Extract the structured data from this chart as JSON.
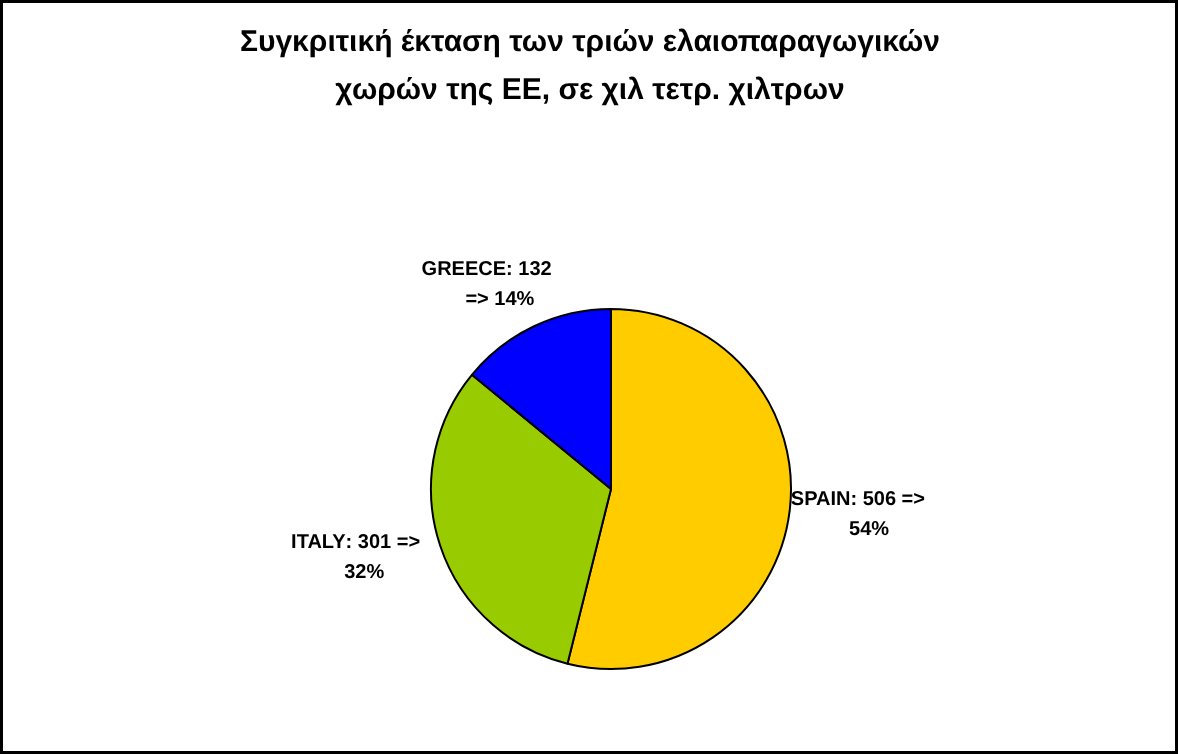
{
  "chart_data": {
    "type": "pie",
    "title": "Συγκριτική έκταση των τριών ελαιοπαραγωγικών\nχωρών της ΕΕ, σε χιλ τετρ. χιλτρων",
    "categories": [
      "SPAIN",
      "ITALY",
      "GREECE"
    ],
    "values": [
      506,
      301,
      132
    ],
    "colors": [
      "#ffcc00",
      "#99cc00",
      "#0000ff"
    ],
    "value_labels": [
      ": 506 =>\n54%",
      ": 301 =>\n32%",
      ": 132\n=> 14%"
    ],
    "legend": false
  }
}
